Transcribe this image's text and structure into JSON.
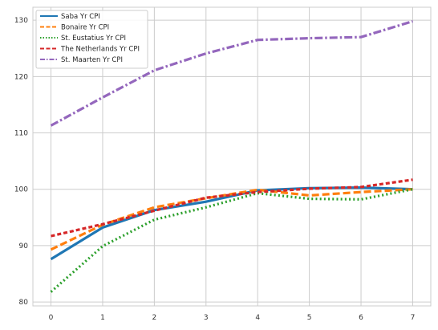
{
  "chart_data": {
    "type": "line",
    "title": "",
    "xlabel": "",
    "ylabel": "",
    "x": [
      0,
      1,
      2,
      3,
      4,
      5,
      6,
      7
    ],
    "xlim": [
      -0.35,
      7.35
    ],
    "ylim": [
      79.3,
      132.3
    ],
    "xticks": [
      "0",
      "1",
      "2",
      "3",
      "4",
      "5",
      "6",
      "7"
    ],
    "yticks": [
      80,
      90,
      100,
      110,
      120,
      130
    ],
    "grid": true,
    "legend_position": "top-left",
    "series": [
      {
        "name": "Saba Yr CPI",
        "color": "#1f77b4",
        "dash": "solid",
        "values": [
          87.6,
          93.2,
          96.3,
          97.8,
          99.8,
          100.2,
          100.3,
          100.0
        ]
      },
      {
        "name": "Bonaire Yr CPI",
        "color": "#ff7f0e",
        "dash": "dashed",
        "values": [
          89.3,
          93.7,
          96.8,
          98.4,
          99.9,
          98.9,
          99.5,
          100.0
        ]
      },
      {
        "name": "St. Eustatius  Yr CPI",
        "color": "#2ca02c",
        "dash": "dotted",
        "values": [
          81.8,
          89.9,
          94.6,
          96.8,
          99.3,
          98.3,
          98.2,
          100.0
        ]
      },
      {
        "name": "The Netherlands Yr CPI",
        "color": "#d62728",
        "dash": "dashed-short",
        "values": [
          91.7,
          93.8,
          96.2,
          98.5,
          99.5,
          100.1,
          100.4,
          101.7
        ]
      },
      {
        "name": "St. Maarten Yr CPI",
        "color": "#9467bd",
        "dash": "dashdot",
        "values": [
          111.3,
          116.3,
          121.1,
          124.1,
          126.5,
          126.8,
          127.0,
          129.8
        ]
      }
    ]
  }
}
